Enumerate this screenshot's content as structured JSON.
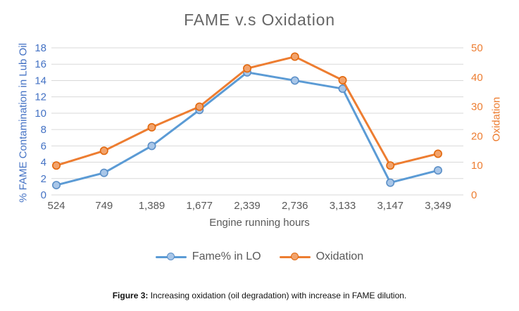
{
  "caption": {
    "label": "Figure 3:",
    "text": " Increasing oxidation (oil degradation) with increase in FAME dilution."
  },
  "colors": {
    "title_text": "#666666",
    "axis_text": "#595959",
    "left_axis": "#4472C4",
    "right_axis": "#ED7D31",
    "gridline": "#D9D9D9",
    "legend_text": "#595959",
    "caption_text": "#111111"
  },
  "chart_data": {
    "type": "line",
    "title": "FAME v.s Oxidation",
    "xlabel": "Engine running hours",
    "ylabel_left": "% FAME Contamination in Lub Oil",
    "ylabel_right": "Oxidation",
    "categories": [
      "524",
      "749",
      "1,389",
      "1,677",
      "2,339",
      "2,736",
      "3,133",
      "3,147",
      "3,349"
    ],
    "series": [
      {
        "name": "Fame% in LO",
        "axis": "left",
        "color": "#5B9BD5",
        "marker_fill": "#A8C6E8",
        "marker_edge": "#5B8FC7",
        "values": [
          1.2,
          2.7,
          6,
          10.4,
          15,
          14,
          13,
          1.5,
          3
        ]
      },
      {
        "name": "Oxidation",
        "axis": "right",
        "color": "#ED7D31",
        "marker_fill": "#F2A36C",
        "marker_edge": "#E2690F",
        "values": [
          10,
          15,
          23,
          30,
          43,
          47,
          39,
          10,
          14
        ]
      }
    ],
    "ylim_left": [
      0,
      18
    ],
    "ytick_step_left": 2,
    "ylim_right": [
      0,
      50
    ],
    "ytick_step_right": 10,
    "grid": true,
    "legend_position": "bottom"
  }
}
